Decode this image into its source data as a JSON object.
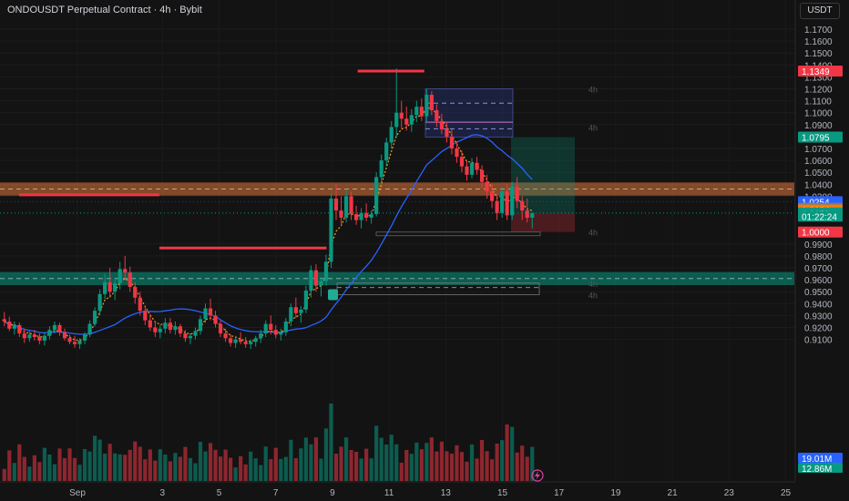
{
  "header": {
    "title": "ONDOUSDT Perpetual Contract · 4h · Bybit",
    "currency": "USDT"
  },
  "chart_data": {
    "type": "candlestick",
    "title": "ONDOUSDT Perpetual Contract · 4h · Bybit",
    "y_ticks": [
      "1.1700",
      "1.1600",
      "1.1500",
      "1.1400",
      "1.1300",
      "1.1200",
      "1.1100",
      "1.1000",
      "1.0900",
      "1.0700",
      "1.0600",
      "1.0500",
      "1.0400",
      "1.0300",
      "0.9900",
      "0.9800",
      "0.9700",
      "0.9600",
      "0.9500",
      "0.9400",
      "0.9300",
      "0.9200",
      "0.9100"
    ],
    "x_ticks": [
      {
        "label": "Sep",
        "day": 0
      },
      {
        "label": "3",
        "day": 3
      },
      {
        "label": "5",
        "day": 5
      },
      {
        "label": "7",
        "day": 7
      },
      {
        "label": "9",
        "day": 9
      },
      {
        "label": "11",
        "day": 11
      },
      {
        "label": "13",
        "day": 13
      },
      {
        "label": "15",
        "day": 15
      },
      {
        "label": "17",
        "day": 17
      },
      {
        "label": "19",
        "day": 19
      },
      {
        "label": "21",
        "day": 21
      },
      {
        "label": "23",
        "day": 23
      },
      {
        "label": "25",
        "day": 25
      }
    ],
    "price_labels": [
      {
        "text": "1.1349",
        "price": 1.1349,
        "color": "#f23645"
      },
      {
        "text": "1.0795",
        "price": 1.0795,
        "color": "#089981"
      },
      {
        "text": "1.0254",
        "price": 1.0254,
        "color": "#2962ff"
      },
      {
        "text": "1.0199",
        "price": 1.0199,
        "color": "#787b86"
      },
      {
        "text": "1.0184",
        "price": 1.0184,
        "color": "#f57c00"
      },
      {
        "text": "1.0159",
        "price": 1.0159,
        "color": "#089981"
      },
      {
        "text": "01:22:24",
        "price": 1.0133,
        "color": "#089981"
      },
      {
        "text": "1.0000",
        "price": 1.0,
        "color": "#f23645"
      }
    ],
    "volume_labels": [
      {
        "text": "19.01M",
        "color": "#2962ff"
      },
      {
        "text": "12.86M",
        "color": "#089981"
      }
    ],
    "timeframe_tags": [
      {
        "text": "4h",
        "price": 1.12,
        "day": 16.5
      },
      {
        "text": "4h",
        "price": 1.088,
        "day": 16.5
      },
      {
        "text": "4h",
        "price": 1.0,
        "day": 16.5
      },
      {
        "text": "4h",
        "price": 0.9572,
        "day": 16.5
      },
      {
        "text": "4h",
        "price": 0.9475,
        "day": 16.5
      }
    ],
    "zones": [
      {
        "name": "resistance",
        "low": 1.0305,
        "high": 1.0415,
        "color": "#e0773a"
      },
      {
        "name": "support",
        "low": 0.9555,
        "high": 0.9665,
        "color": "#089981"
      }
    ],
    "h_levels": [
      {
        "price": 1.1349,
        "day_from": 11.95,
        "day_to": 14.3,
        "color": "#f23645"
      },
      {
        "price": 1.0312,
        "day_from": 0,
        "day_to": 4.95,
        "color": "#f23645"
      },
      {
        "price": 0.9866,
        "day_from": 4.95,
        "day_to": 10.85,
        "color": "#f23645"
      }
    ],
    "candles": [
      [
        0.927,
        0.933,
        0.921,
        0.925
      ],
      [
        0.925,
        0.929,
        0.917,
        0.919
      ],
      [
        0.919,
        0.925,
        0.914,
        0.922
      ],
      [
        0.922,
        0.924,
        0.912,
        0.915
      ],
      [
        0.915,
        0.919,
        0.907,
        0.911
      ],
      [
        0.911,
        0.917,
        0.908,
        0.914
      ],
      [
        0.914,
        0.918,
        0.909,
        0.912
      ],
      [
        0.912,
        0.915,
        0.906,
        0.909
      ],
      [
        0.909,
        0.916,
        0.905,
        0.913
      ],
      [
        0.913,
        0.921,
        0.91,
        0.918
      ],
      [
        0.918,
        0.925,
        0.915,
        0.922
      ],
      [
        0.922,
        0.924,
        0.913,
        0.916
      ],
      [
        0.916,
        0.919,
        0.909,
        0.911
      ],
      [
        0.911,
        0.914,
        0.906,
        0.908
      ],
      [
        0.908,
        0.913,
        0.903,
        0.906
      ],
      [
        0.906,
        0.911,
        0.902,
        0.909
      ],
      [
        0.909,
        0.916,
        0.906,
        0.914
      ],
      [
        0.914,
        0.926,
        0.912,
        0.923
      ],
      [
        0.923,
        0.937,
        0.921,
        0.934
      ],
      [
        0.934,
        0.952,
        0.93,
        0.948
      ],
      [
        0.948,
        0.965,
        0.944,
        0.958
      ],
      [
        0.958,
        0.97,
        0.945,
        0.95
      ],
      [
        0.95,
        0.962,
        0.943,
        0.957
      ],
      [
        0.957,
        0.975,
        0.952,
        0.969
      ],
      [
        0.969,
        0.98,
        0.96,
        0.966
      ],
      [
        0.966,
        0.971,
        0.95,
        0.954
      ],
      [
        0.954,
        0.958,
        0.94,
        0.945
      ],
      [
        0.945,
        0.95,
        0.93,
        0.934
      ],
      [
        0.934,
        0.938,
        0.922,
        0.926
      ],
      [
        0.926,
        0.931,
        0.917,
        0.92
      ],
      [
        0.92,
        0.925,
        0.912,
        0.916
      ],
      [
        0.916,
        0.922,
        0.911,
        0.919
      ],
      [
        0.919,
        0.928,
        0.915,
        0.924
      ],
      [
        0.924,
        0.928,
        0.915,
        0.918
      ],
      [
        0.918,
        0.925,
        0.914,
        0.921
      ],
      [
        0.921,
        0.923,
        0.912,
        0.915
      ],
      [
        0.915,
        0.918,
        0.908,
        0.911
      ],
      [
        0.911,
        0.915,
        0.906,
        0.913
      ],
      [
        0.913,
        0.92,
        0.91,
        0.917
      ],
      [
        0.917,
        0.93,
        0.914,
        0.927
      ],
      [
        0.927,
        0.94,
        0.924,
        0.936
      ],
      [
        0.936,
        0.944,
        0.926,
        0.93
      ],
      [
        0.93,
        0.934,
        0.92,
        0.923
      ],
      [
        0.923,
        0.926,
        0.912,
        0.915
      ],
      [
        0.915,
        0.919,
        0.908,
        0.911
      ],
      [
        0.911,
        0.914,
        0.904,
        0.907
      ],
      [
        0.907,
        0.913,
        0.903,
        0.91
      ],
      [
        0.91,
        0.916,
        0.906,
        0.908
      ],
      [
        0.908,
        0.912,
        0.903,
        0.906
      ],
      [
        0.906,
        0.91,
        0.902,
        0.908
      ],
      [
        0.908,
        0.913,
        0.904,
        0.911
      ],
      [
        0.911,
        0.918,
        0.907,
        0.915
      ],
      [
        0.915,
        0.926,
        0.912,
        0.923
      ],
      [
        0.923,
        0.93,
        0.914,
        0.918
      ],
      [
        0.918,
        0.922,
        0.911,
        0.914
      ],
      [
        0.914,
        0.919,
        0.909,
        0.916
      ],
      [
        0.916,
        0.928,
        0.913,
        0.925
      ],
      [
        0.925,
        0.94,
        0.921,
        0.937
      ],
      [
        0.937,
        0.945,
        0.928,
        0.932
      ],
      [
        0.932,
        0.938,
        0.924,
        0.935
      ],
      [
        0.935,
        0.955,
        0.932,
        0.951
      ],
      [
        0.951,
        0.972,
        0.945,
        0.968
      ],
      [
        0.968,
        0.973,
        0.95,
        0.955
      ],
      [
        0.955,
        0.962,
        0.946,
        0.959
      ],
      [
        0.959,
        0.981,
        0.955,
        0.975
      ],
      [
        0.975,
        1.032,
        0.97,
        1.028
      ],
      [
        1.028,
        1.04,
        1.01,
        1.018
      ],
      [
        1.018,
        1.03,
        1.005,
        1.012
      ],
      [
        1.012,
        1.036,
        1.008,
        1.03
      ],
      [
        1.03,
        1.034,
        1.01,
        1.015
      ],
      [
        1.015,
        1.022,
        1.006,
        1.01
      ],
      [
        1.01,
        1.02,
        1.003,
        1.016
      ],
      [
        1.016,
        1.024,
        1.009,
        1.012
      ],
      [
        1.012,
        1.018,
        1.007,
        1.015
      ],
      [
        1.015,
        1.05,
        1.013,
        1.046
      ],
      [
        1.046,
        1.065,
        1.04,
        1.06
      ],
      [
        1.06,
        1.079,
        1.055,
        1.075
      ],
      [
        1.075,
        1.093,
        1.07,
        1.088
      ],
      [
        1.088,
        1.137,
        1.08,
        1.1
      ],
      [
        1.1,
        1.11,
        1.087,
        1.095
      ],
      [
        1.095,
        1.105,
        1.085,
        1.09
      ],
      [
        1.09,
        1.103,
        1.084,
        1.098
      ],
      [
        1.098,
        1.11,
        1.092,
        1.105
      ],
      [
        1.105,
        1.112,
        1.093,
        1.097
      ],
      [
        1.097,
        1.12,
        1.092,
        1.115
      ],
      [
        1.115,
        1.118,
        1.098,
        1.102
      ],
      [
        1.102,
        1.107,
        1.088,
        1.093
      ],
      [
        1.093,
        1.099,
        1.082,
        1.086
      ],
      [
        1.086,
        1.092,
        1.075,
        1.08
      ],
      [
        1.08,
        1.086,
        1.065,
        1.07
      ],
      [
        1.07,
        1.076,
        1.058,
        1.063
      ],
      [
        1.063,
        1.068,
        1.05,
        1.055
      ],
      [
        1.055,
        1.06,
        1.043,
        1.048
      ],
      [
        1.048,
        1.062,
        1.045,
        1.058
      ],
      [
        1.058,
        1.063,
        1.048,
        1.052
      ],
      [
        1.052,
        1.056,
        1.037,
        1.042
      ],
      [
        1.042,
        1.048,
        1.028,
        1.034
      ],
      [
        1.034,
        1.04,
        1.02,
        1.026
      ],
      [
        1.026,
        1.032,
        1.01,
        1.016
      ],
      [
        1.016,
        1.038,
        1.012,
        1.034
      ],
      [
        1.034,
        1.04,
        1.01,
        1.014
      ],
      [
        1.014,
        1.042,
        1.01,
        1.038
      ],
      [
        1.038,
        1.046,
        1.02,
        1.026
      ],
      [
        1.026,
        1.03,
        1.01,
        1.018
      ],
      [
        1.018,
        1.028,
        1.008,
        1.012
      ],
      [
        1.012,
        1.016,
        1.003,
        1.016
      ]
    ],
    "indicators": {
      "sma_color": "#2962ff",
      "ema_color": "#f7a21b",
      "volume_up": "#089981",
      "volume_down": "#f23645"
    }
  },
  "footer": {
    "lightning_icon": "lightning-icon"
  }
}
